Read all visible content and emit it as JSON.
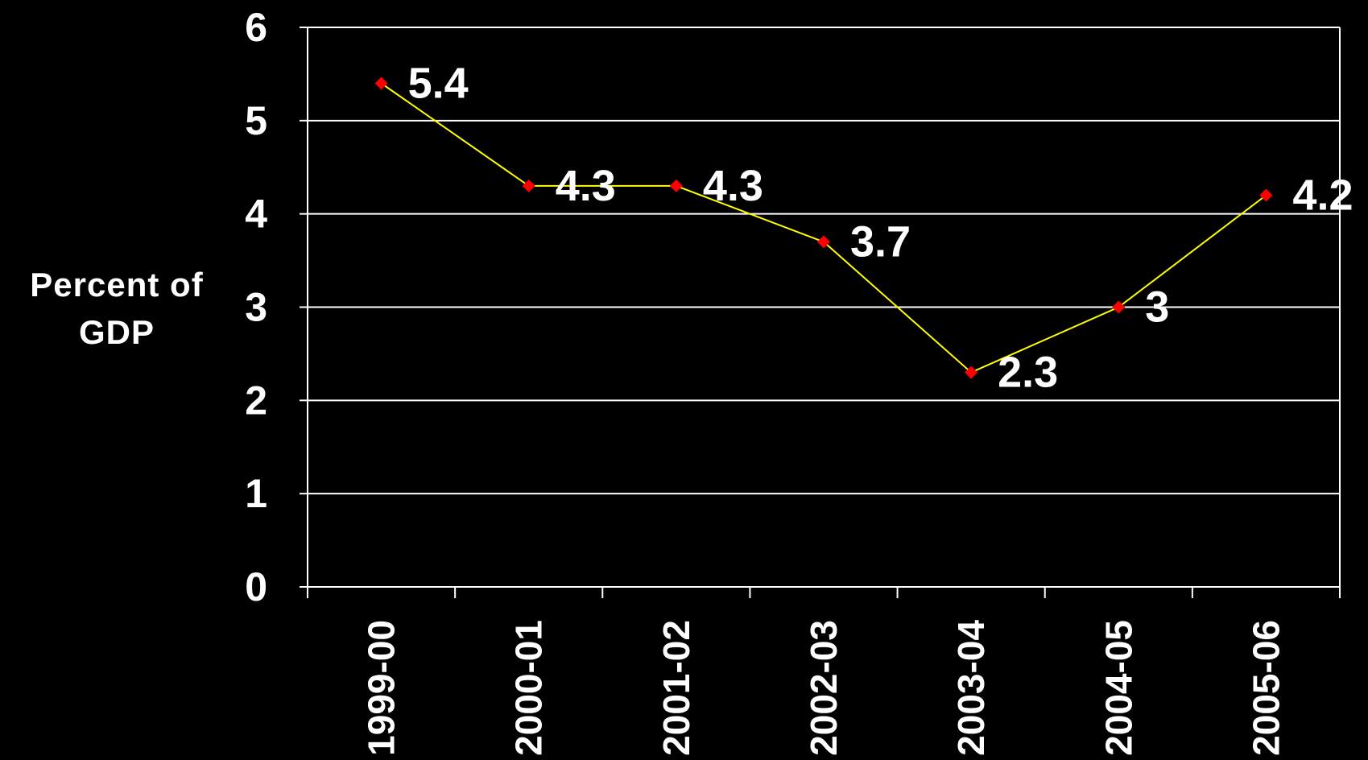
{
  "chart_data": {
    "type": "line",
    "ylabel_lines": [
      "Percent of",
      "GDP"
    ],
    "categories": [
      "1999-00",
      "2000-01",
      "2001-02",
      "2002-03",
      "2003-04",
      "2004-05",
      "2005-06"
    ],
    "values": [
      5.4,
      4.3,
      4.3,
      3.7,
      2.3,
      3,
      4.2
    ],
    "data_labels": [
      "5.4",
      "4.3",
      "4.3",
      "3.7",
      "2.3",
      "3",
      "4.2"
    ],
    "ylim": [
      0,
      6
    ],
    "yticks": [
      "0",
      "1",
      "2",
      "3",
      "4",
      "5",
      "6"
    ],
    "grid": true,
    "legend": "none"
  },
  "colors": {
    "background": "#000000",
    "axis": "#ffffff",
    "grid": "#ffffff",
    "line": "#ffff00",
    "marker": "#ff0000",
    "text": "#ffffff"
  }
}
